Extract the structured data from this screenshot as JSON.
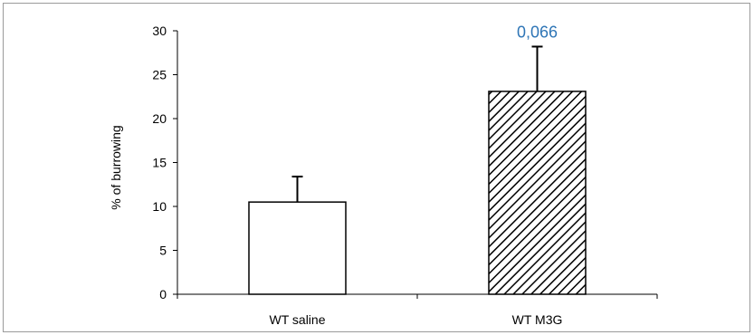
{
  "chart_data": {
    "type": "bar",
    "title": "",
    "xlabel": "",
    "ylabel": "% of burrowing",
    "ylim": [
      0,
      30
    ],
    "yticks": [
      0,
      5,
      10,
      15,
      20,
      25,
      30
    ],
    "categories": [
      "WT saline",
      "WT M3G"
    ],
    "values": [
      10.5,
      23.1
    ],
    "error_upper": [
      13.4,
      28.2
    ],
    "bar_fills": [
      "white",
      "diagonal-hatch"
    ],
    "grid": false,
    "legend": "none",
    "annotations": [
      {
        "text": "0,066",
        "category_index": 1,
        "y": 28.2,
        "color": "#2e75b6"
      }
    ]
  }
}
